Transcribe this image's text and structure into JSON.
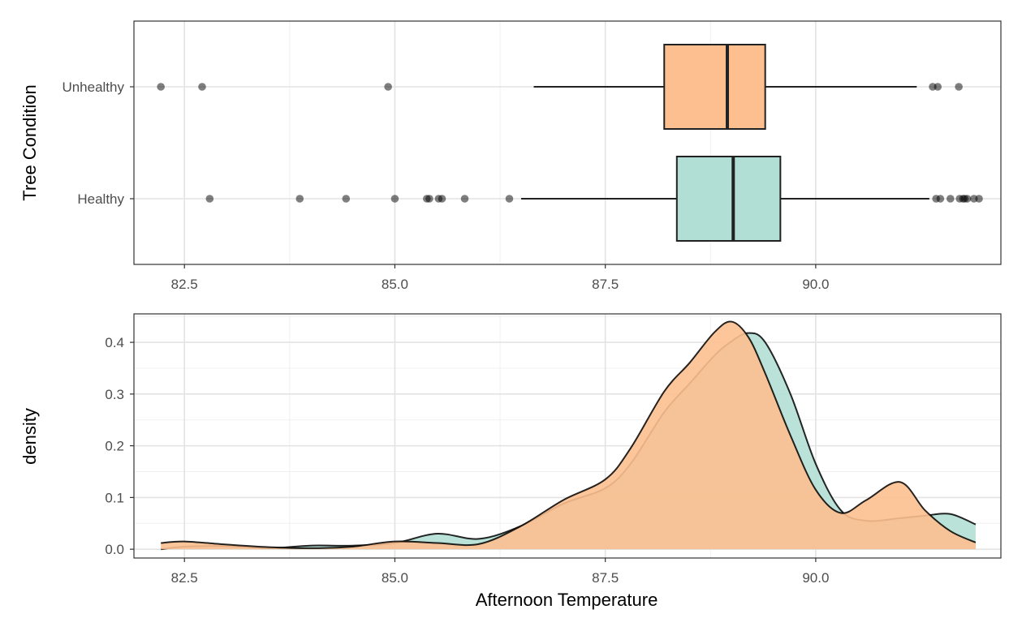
{
  "chart_data": [
    {
      "type": "boxplot",
      "orientation": "horizontal",
      "ylabel": "Tree Condition",
      "xlabel": "",
      "xlim": [
        81.9,
        92.2
      ],
      "x_ticks": [
        82.5,
        85.0,
        87.5,
        90.0
      ],
      "x_tick_labels": [
        "82.5",
        "85.0",
        "87.5",
        "90.0"
      ],
      "grid": true,
      "categories": [
        "Unhealthy",
        "Healthy"
      ],
      "boxes": [
        {
          "category": "Unhealthy",
          "color": "#FDBF8F",
          "whisker_low": 86.65,
          "q1": 88.2,
          "median": 88.95,
          "q3": 89.4,
          "whisker_high": 91.2,
          "outliers": [
            82.22,
            82.71,
            84.92,
            91.39,
            91.45,
            91.7
          ]
        },
        {
          "category": "Healthy",
          "color": "#B2DFD5",
          "whisker_low": 86.5,
          "q1": 88.35,
          "median": 89.02,
          "q3": 89.58,
          "whisker_high": 91.35,
          "outliers": [
            82.8,
            83.87,
            84.42,
            85.0,
            85.38,
            85.41,
            85.52,
            85.56,
            85.83,
            86.36,
            91.43,
            91.48,
            91.6,
            91.71,
            91.75,
            91.77,
            91.8,
            91.88,
            91.94
          ]
        }
      ]
    },
    {
      "type": "area",
      "subtype": "density",
      "xlabel": "Afternoon Temperature",
      "ylabel": "density",
      "xlim": [
        81.9,
        92.2
      ],
      "ylim": [
        -0.017,
        0.455
      ],
      "x_ticks": [
        82.5,
        85.0,
        87.5,
        90.0
      ],
      "x_tick_labels": [
        "82.5",
        "85.0",
        "87.5",
        "90.0"
      ],
      "y_ticks": [
        0.0,
        0.1,
        0.2,
        0.3,
        0.4
      ],
      "y_tick_labels": [
        "0.0",
        "0.1",
        "0.2",
        "0.3",
        "0.4"
      ],
      "grid": true,
      "series": [
        {
          "color": "#B2DFD5",
          "x": [
            82.22,
            82.5,
            83.0,
            83.5,
            84.0,
            84.5,
            85.0,
            85.5,
            86.0,
            86.5,
            87.0,
            87.5,
            87.8,
            88.2,
            88.5,
            88.8,
            89.0,
            89.2,
            89.4,
            89.7,
            90.0,
            90.3,
            90.6,
            91.0,
            91.3,
            91.6,
            91.9
          ],
          "y": [
            0.0,
            0.005,
            0.006,
            0.002,
            0.007,
            0.007,
            0.012,
            0.03,
            0.02,
            0.045,
            0.088,
            0.118,
            0.165,
            0.265,
            0.32,
            0.375,
            0.402,
            0.418,
            0.4,
            0.3,
            0.165,
            0.075,
            0.055,
            0.06,
            0.065,
            0.068,
            0.048
          ]
        },
        {
          "color": "#FDBF8F",
          "x": [
            82.22,
            82.5,
            83.0,
            83.5,
            84.0,
            84.5,
            85.0,
            85.5,
            86.0,
            86.5,
            87.0,
            87.5,
            87.8,
            88.2,
            88.5,
            88.8,
            89.0,
            89.2,
            89.4,
            89.7,
            90.0,
            90.3,
            90.6,
            91.0,
            91.3,
            91.6,
            91.9
          ],
          "y": [
            0.012,
            0.015,
            0.009,
            0.004,
            0.002,
            0.005,
            0.015,
            0.012,
            0.01,
            0.045,
            0.095,
            0.135,
            0.195,
            0.305,
            0.36,
            0.42,
            0.44,
            0.41,
            0.34,
            0.22,
            0.115,
            0.07,
            0.095,
            0.13,
            0.075,
            0.035,
            0.013
          ]
        }
      ]
    }
  ]
}
